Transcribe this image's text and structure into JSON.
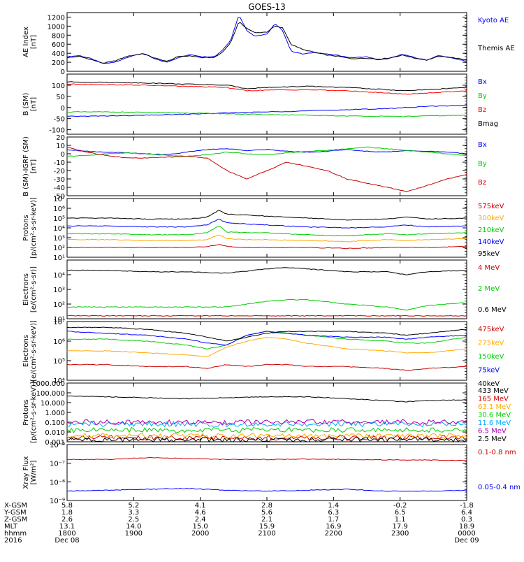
{
  "title": "GOES-13",
  "chart_data": [
    {
      "type": "line",
      "panel": "ae",
      "ylabel": [
        "AE Index",
        "[nT]"
      ],
      "yscale": "linear",
      "ylim": [
        0,
        1300
      ],
      "yticks": [
        "0",
        "200",
        "400",
        "600",
        "800",
        "1000",
        "1200"
      ],
      "ytick_values": [
        0,
        200,
        400,
        600,
        800,
        1000,
        1200
      ],
      "x": [
        0,
        0.03,
        0.06,
        0.09,
        0.12,
        0.15,
        0.19,
        0.22,
        0.25,
        0.28,
        0.31,
        0.34,
        0.37,
        0.39,
        0.41,
        0.43,
        0.45,
        0.47,
        0.5,
        0.52,
        0.54,
        0.56,
        0.59,
        0.62,
        0.65,
        0.68,
        0.71,
        0.75,
        0.78,
        0.81,
        0.84,
        0.87,
        0.9,
        0.93,
        0.96,
        1.0
      ],
      "series": [
        {
          "name": "Kyoto AE",
          "color": "#0000ff",
          "values": [
            320,
            350,
            280,
            170,
            200,
            310,
            400,
            270,
            200,
            310,
            370,
            320,
            330,
            480,
            700,
            1250,
            900,
            780,
            820,
            1050,
            900,
            450,
            380,
            420,
            380,
            350,
            300,
            320,
            250,
            290,
            380,
            300,
            250,
            350,
            300,
            220
          ]
        },
        {
          "name": "Themis AE",
          "color": "#000000",
          "values": [
            300,
            330,
            260,
            180,
            230,
            330,
            390,
            290,
            220,
            330,
            340,
            300,
            310,
            430,
            650,
            1100,
            950,
            850,
            870,
            1000,
            960,
            600,
            480,
            420,
            360,
            330,
            280,
            290,
            270,
            300,
            360,
            290,
            250,
            330,
            310,
            250
          ]
        }
      ]
    },
    {
      "type": "line",
      "panel": "bsm",
      "ylabel": [
        "B (SM)",
        "[nT]"
      ],
      "yscale": "linear",
      "ylim": [
        -120,
        150
      ],
      "yticks": [
        "-100",
        "-50",
        "0",
        "50",
        "100"
      ],
      "ytick_values": [
        -100,
        -50,
        0,
        50,
        100
      ],
      "x": [
        0,
        0.1,
        0.2,
        0.3,
        0.4,
        0.45,
        0.5,
        0.6,
        0.7,
        0.8,
        0.85,
        0.9,
        1.0
      ],
      "series": [
        {
          "name": "Bx",
          "color": "#0000ff",
          "values": [
            -40,
            -38,
            -35,
            -30,
            -25,
            -22,
            -20,
            -15,
            -10,
            -5,
            0,
            5,
            10
          ]
        },
        {
          "name": "By",
          "color": "#00cc00",
          "values": [
            -20,
            -20,
            -22,
            -25,
            -28,
            -30,
            -32,
            -35,
            -38,
            -40,
            -40,
            -38,
            -35
          ]
        },
        {
          "name": "Bz",
          "color": "#ff0000",
          "values": [
            105,
            103,
            100,
            95,
            90,
            75,
            78,
            80,
            75,
            65,
            60,
            65,
            75
          ]
        },
        {
          "name": "Bmag",
          "color": "#000000",
          "values": [
            115,
            113,
            110,
            105,
            100,
            85,
            90,
            95,
            90,
            80,
            75,
            80,
            90
          ]
        }
      ]
    },
    {
      "type": "line",
      "panel": "bigrf",
      "ylabel": [
        "B (SM)-IGRF (SM)",
        "[nT]"
      ],
      "yscale": "linear",
      "ylim": [
        -50,
        20
      ],
      "yticks": [
        "-50",
        "-40",
        "-30",
        "-20",
        "-10",
        "0",
        "10",
        "20"
      ],
      "ytick_values": [
        -50,
        -40,
        -30,
        -20,
        -10,
        0,
        10,
        20
      ],
      "x": [
        0,
        0.05,
        0.1,
        0.15,
        0.2,
        0.25,
        0.3,
        0.35,
        0.4,
        0.45,
        0.5,
        0.55,
        0.6,
        0.65,
        0.7,
        0.75,
        0.8,
        0.85,
        0.9,
        0.95,
        1.0
      ],
      "series": [
        {
          "name": "Bx",
          "color": "#0000ff",
          "values": [
            5,
            3,
            2,
            1,
            0,
            -1,
            2,
            5,
            6,
            4,
            5,
            3,
            2,
            3,
            5,
            3,
            2,
            4,
            3,
            2,
            0
          ]
        },
        {
          "name": "By",
          "color": "#00cc00",
          "values": [
            -3,
            -2,
            0,
            1,
            0,
            -2,
            -3,
            -1,
            2,
            0,
            -1,
            1,
            3,
            4,
            6,
            8,
            6,
            4,
            2,
            0,
            -2
          ]
        },
        {
          "name": "Bz",
          "color": "#cc0000",
          "values": [
            8,
            2,
            -2,
            -5,
            -5,
            -4,
            -3,
            -5,
            -20,
            -30,
            -20,
            -10,
            -15,
            -20,
            -30,
            -35,
            -40,
            -45,
            -38,
            -30,
            -25
          ]
        }
      ]
    },
    {
      "type": "line",
      "panel": "protons",
      "ylabel": [
        "Protons",
        "[p/(cm²-s-sr-keV)]"
      ],
      "yscale": "log",
      "ylim": [
        1,
        7
      ],
      "yticks": [
        "10¹",
        "10²",
        "10³",
        "10⁴",
        "10⁵",
        "10⁶",
        "10⁷"
      ],
      "ytick_values": [
        1,
        2,
        3,
        4,
        5,
        6,
        7
      ],
      "x": [
        0,
        0.1,
        0.2,
        0.3,
        0.35,
        0.38,
        0.4,
        0.45,
        0.5,
        0.6,
        0.7,
        0.8,
        0.85,
        0.9,
        1.0
      ],
      "series": [
        {
          "name": "575keV",
          "color": "#cc0000",
          "values": [
            2,
            2,
            2,
            2,
            2.1,
            2.3,
            2.1,
            2,
            2,
            2,
            1.9,
            2,
            2,
            2,
            2.1
          ]
        },
        {
          "name": "300keV",
          "color": "#ffaa00",
          "values": [
            2.8,
            2.8,
            2.7,
            2.7,
            2.8,
            3.3,
            2.9,
            2.8,
            2.8,
            2.7,
            2.6,
            2.8,
            2.7,
            2.8,
            2.9
          ]
        },
        {
          "name": "210keV",
          "color": "#00cc00",
          "values": [
            3.4,
            3.4,
            3.3,
            3.3,
            3.5,
            4.2,
            3.6,
            3.5,
            3.5,
            3.3,
            3.2,
            3.4,
            3.3,
            3.4,
            3.5
          ]
        },
        {
          "name": "140keV",
          "color": "#0000ff",
          "values": [
            4.2,
            4.2,
            4.1,
            4.1,
            4.3,
            4.9,
            4.5,
            4.4,
            4.3,
            4.1,
            4,
            4.1,
            4.3,
            4.1,
            4.2
          ]
        },
        {
          "name": "95keV",
          "color": "#000000",
          "values": [
            5,
            5,
            4.9,
            4.9,
            5.1,
            5.8,
            5.4,
            5.3,
            5.2,
            5,
            4.8,
            4.9,
            5.1,
            4.9,
            5
          ]
        }
      ]
    },
    {
      "type": "line",
      "panel": "electrons_mev",
      "ylabel": [
        "Electrons",
        "[e/(cm²-s-sr)]"
      ],
      "yscale": "log",
      "ylim": [
        1,
        5
      ],
      "yticks": [
        "10¹",
        "10²",
        "10³",
        "10⁴"
      ],
      "ytick_values": [
        1,
        2,
        3,
        4
      ],
      "x": [
        0,
        0.1,
        0.2,
        0.3,
        0.4,
        0.5,
        0.55,
        0.6,
        0.7,
        0.8,
        0.85,
        0.9,
        1.0
      ],
      "series": [
        {
          "name": "4 MeV",
          "color": "#cc0000",
          "values": [
            1.2,
            1.2,
            1.2,
            1.2,
            1.2,
            1.2,
            1.2,
            1.2,
            1.2,
            1.2,
            1.2,
            1.2,
            1.2
          ]
        },
        {
          "name": "2 MeV",
          "color": "#00cc00",
          "values": [
            1.8,
            1.8,
            1.8,
            1.8,
            1.8,
            2.2,
            2.3,
            2.3,
            2.0,
            1.8,
            1.6,
            1.9,
            2.1
          ]
        },
        {
          "name": "0.6 MeV",
          "color": "#000000",
          "values": [
            4.3,
            4.3,
            4.2,
            4.2,
            4.1,
            4.4,
            4.5,
            4.4,
            4.2,
            4.2,
            4.0,
            4.2,
            4.3
          ]
        }
      ]
    },
    {
      "type": "line",
      "panel": "electrons_kev",
      "ylabel": [
        "Electrons",
        "[e/(cm²-s-sr-keV)]"
      ],
      "yscale": "log",
      "ylim": [
        4,
        7
      ],
      "yticks": [
        "10⁴",
        "10⁵",
        "10⁶",
        "10⁷"
      ],
      "ytick_values": [
        4,
        5,
        6,
        7
      ],
      "x": [
        0,
        0.1,
        0.2,
        0.3,
        0.35,
        0.4,
        0.45,
        0.5,
        0.55,
        0.6,
        0.7,
        0.8,
        0.85,
        0.9,
        1.0
      ],
      "series": [
        {
          "name": "475keV",
          "color": "#cc0000",
          "values": [
            4.8,
            4.8,
            4.7,
            4.7,
            4.6,
            4.8,
            4.7,
            4.8,
            4.8,
            4.7,
            4.7,
            4.6,
            4.5,
            4.6,
            4.7
          ]
        },
        {
          "name": "275keV",
          "color": "#ffaa00",
          "values": [
            5.5,
            5.5,
            5.4,
            5.3,
            5.2,
            5.7,
            6.0,
            6.2,
            6.1,
            5.9,
            5.6,
            5.5,
            5.4,
            5.4,
            5.6
          ]
        },
        {
          "name": "150keV",
          "color": "#00cc00",
          "values": [
            6.1,
            6.1,
            6.0,
            5.8,
            5.6,
            5.8,
            6.3,
            6.5,
            6.4,
            6.3,
            6.1,
            6.0,
            5.9,
            5.9,
            6.2
          ]
        },
        {
          "name": "75keV",
          "color": "#0000ff",
          "values": [
            6.5,
            6.4,
            6.3,
            6.1,
            5.9,
            5.8,
            6.3,
            6.5,
            6.4,
            6.3,
            6.2,
            6.2,
            6.1,
            6.2,
            6.3
          ]
        },
        {
          "name": "40keV",
          "color": "#000000",
          "values": [
            6.7,
            6.7,
            6.6,
            6.4,
            6.2,
            6.0,
            6.2,
            6.4,
            6.5,
            6.5,
            6.5,
            6.4,
            6.3,
            6.4,
            6.6
          ]
        }
      ]
    },
    {
      "type": "line",
      "panel": "protons_mev",
      "ylabel": [
        "Protons",
        "[p/(cm²-s-sr-keV)]"
      ],
      "yscale": "log",
      "ylim": [
        -3,
        3
      ],
      "yticks": [
        "0.001",
        "0.010",
        "0.100",
        "1.000",
        "10.000",
        "100.000",
        "1000.000"
      ],
      "ytick_values": [
        -3,
        -2,
        -1,
        0,
        1,
        2,
        3
      ],
      "x": [
        0,
        0.1,
        0.2,
        0.3,
        0.4,
        0.5,
        0.6,
        0.7,
        0.8,
        0.85,
        0.9,
        1.0
      ],
      "series": [
        {
          "name": "433 MeV",
          "color": "#000000",
          "values": [
            1.7,
            1.6,
            1.5,
            1.4,
            1.5,
            1.6,
            1.6,
            1.4,
            1.2,
            1.1,
            1.2,
            1.3
          ]
        },
        {
          "name": "165 MeV",
          "color": "#cc0000",
          "values": [
            -2.6,
            -2.6,
            -2.6,
            -2.6,
            -2.6,
            -2.6,
            -2.6,
            -2.6,
            -2.6,
            -2.6,
            -2.6,
            -2.6
          ]
        },
        {
          "name": "63.1 MeV",
          "color": "#ffaa00",
          "values": [
            -2.4,
            -2.4,
            -2.4,
            -2.4,
            -2.4,
            -2.4,
            -2.4,
            -2.4,
            -2.4,
            -2.4,
            -2.4,
            -2.4
          ]
        },
        {
          "name": "30.6 MeV",
          "color": "#00cc00",
          "values": [
            -1.8,
            -1.8,
            -1.8,
            -1.8,
            -1.8,
            -1.8,
            -1.8,
            -1.8,
            -1.8,
            -1.8,
            -1.8,
            -1.8
          ]
        },
        {
          "name": "11.6 MeV",
          "color": "#00aaff",
          "values": [
            -1.2,
            -1.2,
            -1.2,
            -1.2,
            -1.2,
            -1.2,
            -1.2,
            -1.2,
            -1.2,
            -1.2,
            -1.2,
            -1.2
          ]
        },
        {
          "name": "6.5 MeV",
          "color": "#aa00aa",
          "values": [
            -1.0,
            -1.0,
            -1.0,
            -1.0,
            -1.0,
            -1.0,
            -1.0,
            -1.0,
            -1.0,
            -1.0,
            -1.0,
            -1.0
          ]
        },
        {
          "name": "2.5 MeV",
          "color": "#000000",
          "values": [
            -2.8,
            -2.8,
            -2.8,
            -2.8,
            -2.8,
            -2.8,
            -2.8,
            -2.8,
            -2.8,
            -2.8,
            -2.8,
            -2.8
          ]
        }
      ]
    },
    {
      "type": "line",
      "panel": "xray",
      "ylabel": [
        "Xray Flux",
        "[W/m²]"
      ],
      "yscale": "log",
      "ylim": [
        -9,
        -6
      ],
      "yticks": [
        "10⁻⁹",
        "10⁻⁸",
        "10⁻⁷",
        "10⁻⁶"
      ],
      "ytick_values": [
        -9,
        -8,
        -7,
        -6
      ],
      "x": [
        0,
        0.1,
        0.2,
        0.3,
        0.4,
        0.5,
        0.6,
        0.7,
        0.8,
        0.9,
        1.0
      ],
      "series": [
        {
          "name": "0.1-0.8 nm",
          "color": "#cc0000",
          "values": [
            -6.8,
            -6.8,
            -6.7,
            -6.75,
            -6.8,
            -6.8,
            -6.78,
            -6.8,
            -6.82,
            -6.83,
            -6.85
          ]
        },
        {
          "name": "0.05-0.4 nm",
          "color": "#0000ff",
          "values": [
            -8.5,
            -8.45,
            -8.4,
            -8.35,
            -8.45,
            -8.5,
            -8.45,
            -8.4,
            -8.5,
            -8.5,
            -8.45
          ]
        }
      ]
    }
  ],
  "x_axis": {
    "row_labels": [
      "X-GSM",
      "Y-GSM",
      "Z-GSM",
      "MLT",
      "hhmm",
      "2016"
    ],
    "columns": [
      {
        "values": [
          "5.8",
          "1.8",
          "2.6",
          "13.1",
          "1800",
          "Dec 08"
        ]
      },
      {
        "values": [
          "5.2",
          "3.3",
          "2.5",
          "14.0",
          "1900",
          ""
        ]
      },
      {
        "values": [
          "4.1",
          "4.6",
          "2.4",
          "15.0",
          "2000",
          ""
        ]
      },
      {
        "values": [
          "2.8",
          "5.6",
          "2.1",
          "15.9",
          "2100",
          ""
        ]
      },
      {
        "values": [
          "1.4",
          "6.3",
          "1.7",
          "16.9",
          "2200",
          ""
        ]
      },
      {
        "values": [
          "-0.2",
          "6.5",
          "1.1",
          "17.9",
          "2300",
          ""
        ]
      },
      {
        "values": [
          "-1.8",
          "6.4",
          "0.3",
          "18.9",
          "0000",
          "Dec 09"
        ]
      }
    ]
  }
}
